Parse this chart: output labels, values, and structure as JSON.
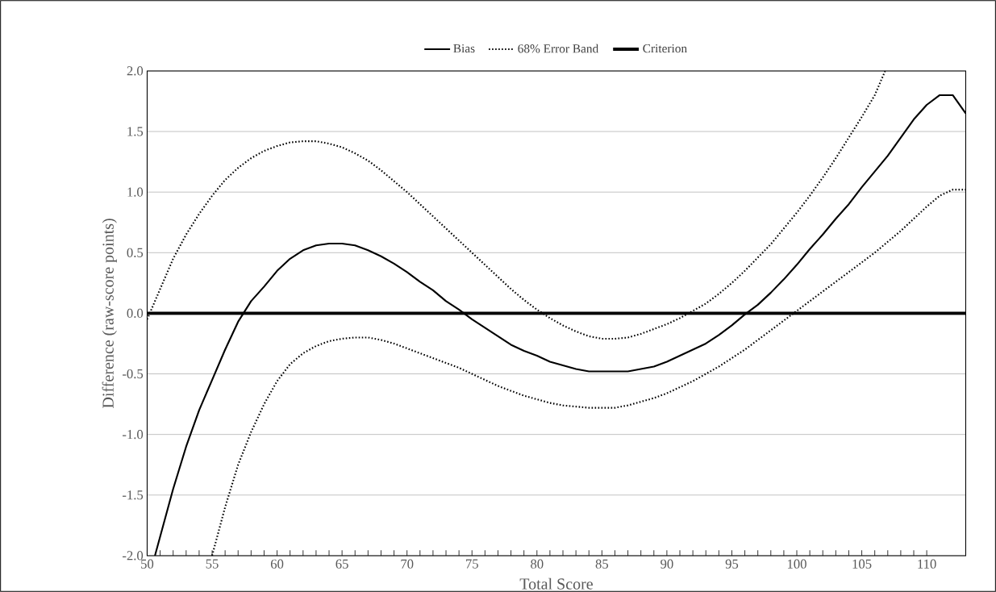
{
  "chart_data": {
    "type": "line",
    "xlabel": "Total Score",
    "ylabel": "Difference (raw-score points)",
    "xlim": [
      50,
      113
    ],
    "xticks": [
      50,
      55,
      60,
      65,
      70,
      75,
      80,
      85,
      90,
      95,
      100,
      105,
      110
    ],
    "ylim": [
      -2.0,
      2.0
    ],
    "yticks": [
      {
        "value": -2.0,
        "label": "-2.0"
      },
      {
        "value": -1.5,
        "label": "-1.5"
      },
      {
        "value": -1.0,
        "label": "-1.0"
      },
      {
        "value": -0.5,
        "label": "-0.5"
      },
      {
        "value": 0.0,
        "label": "0.0"
      },
      {
        "value": 0.5,
        "label": "0.5"
      },
      {
        "value": 1.0,
        "label": "1.0"
      },
      {
        "value": 1.5,
        "label": "1.5"
      },
      {
        "value": 2.0,
        "label": "2.0"
      }
    ],
    "grid": "y",
    "legend": "top",
    "marker": "none",
    "series": [
      {
        "name": "Bias",
        "color": "#000000",
        "line_style": "solid",
        "x": [
          50.6,
          52,
          53,
          54,
          55,
          56,
          57,
          58,
          59,
          60,
          61,
          62,
          63,
          64,
          65,
          66,
          67,
          68,
          69,
          70,
          71,
          72,
          73,
          74,
          75,
          76,
          77,
          78,
          79,
          80,
          81,
          82,
          83,
          84,
          85,
          86,
          87,
          88,
          89,
          90,
          91,
          92,
          93,
          94,
          95,
          96,
          97,
          98,
          99,
          100,
          101,
          102,
          103,
          104,
          105,
          106,
          107,
          108,
          109,
          110,
          111,
          112,
          113
        ],
        "values": [
          -2.0,
          -1.45,
          -1.1,
          -0.8,
          -0.55,
          -0.3,
          -0.07,
          0.1,
          0.22,
          0.35,
          0.45,
          0.52,
          0.56,
          0.575,
          0.575,
          0.56,
          0.52,
          0.47,
          0.41,
          0.34,
          0.26,
          0.19,
          0.1,
          0.03,
          -0.05,
          -0.12,
          -0.19,
          -0.26,
          -0.31,
          -0.35,
          -0.4,
          -0.43,
          -0.46,
          -0.48,
          -0.48,
          -0.48,
          -0.48,
          -0.46,
          -0.44,
          -0.4,
          -0.35,
          -0.3,
          -0.25,
          -0.18,
          -0.1,
          -0.01,
          0.07,
          0.17,
          0.28,
          0.4,
          0.53,
          0.65,
          0.78,
          0.9,
          1.04,
          1.17,
          1.3,
          1.45,
          1.6,
          1.72,
          1.8,
          1.8,
          1.65
        ]
      },
      {
        "name": "68% Error Band",
        "color": "#000000",
        "line_style": "dotted",
        "x": [
          50,
          51,
          52,
          53,
          54,
          55,
          56,
          57,
          58,
          59,
          60,
          61,
          62,
          63,
          64,
          65,
          66,
          67,
          68,
          69,
          70,
          71,
          72,
          73,
          74,
          75,
          76,
          77,
          78,
          79,
          80,
          81,
          82,
          83,
          84,
          85,
          86,
          87,
          88,
          89,
          90,
          91,
          92,
          93,
          94,
          95,
          96,
          97,
          98,
          99,
          100,
          101,
          102,
          103,
          104,
          105,
          106,
          106.8
        ],
        "values": [
          -0.05,
          0.2,
          0.45,
          0.65,
          0.82,
          0.97,
          1.1,
          1.2,
          1.28,
          1.34,
          1.38,
          1.41,
          1.42,
          1.42,
          1.4,
          1.37,
          1.32,
          1.26,
          1.18,
          1.09,
          1.0,
          0.9,
          0.8,
          0.7,
          0.6,
          0.5,
          0.4,
          0.3,
          0.2,
          0.11,
          0.03,
          -0.04,
          -0.1,
          -0.15,
          -0.19,
          -0.21,
          -0.21,
          -0.2,
          -0.17,
          -0.13,
          -0.09,
          -0.04,
          0.02,
          0.08,
          0.16,
          0.25,
          0.35,
          0.46,
          0.57,
          0.7,
          0.83,
          0.97,
          1.12,
          1.28,
          1.45,
          1.62,
          1.8,
          2.0
        ]
      },
      {
        "color": "#000000",
        "line_style": "dotted",
        "x": [
          55,
          56,
          57,
          58,
          59,
          60,
          61,
          62,
          63,
          64,
          65,
          66,
          67,
          68,
          69,
          70,
          71,
          72,
          73,
          74,
          75,
          76,
          77,
          78,
          79,
          80,
          81,
          82,
          83,
          84,
          85,
          86,
          87,
          88,
          89,
          90,
          91,
          92,
          93,
          94,
          95,
          96,
          97,
          98,
          99,
          100,
          101,
          102,
          103,
          104,
          105,
          106,
          107,
          108,
          109,
          110,
          111,
          112,
          113
        ],
        "values": [
          -2.0,
          -1.6,
          -1.25,
          -0.98,
          -0.75,
          -0.56,
          -0.42,
          -0.33,
          -0.27,
          -0.23,
          -0.21,
          -0.2,
          -0.2,
          -0.22,
          -0.25,
          -0.29,
          -0.33,
          -0.37,
          -0.41,
          -0.45,
          -0.5,
          -0.55,
          -0.6,
          -0.64,
          -0.68,
          -0.71,
          -0.74,
          -0.76,
          -0.77,
          -0.78,
          -0.78,
          -0.78,
          -0.76,
          -0.73,
          -0.7,
          -0.66,
          -0.61,
          -0.56,
          -0.5,
          -0.44,
          -0.37,
          -0.3,
          -0.22,
          -0.14,
          -0.06,
          0.02,
          0.1,
          0.18,
          0.26,
          0.34,
          0.42,
          0.5,
          0.59,
          0.68,
          0.78,
          0.88,
          0.97,
          1.02,
          1.02
        ]
      }
    ],
    "ref_lines": [
      {
        "axis": "y",
        "value": 0,
        "label": "Criterion",
        "color": "#000000",
        "line_style": "solid"
      }
    ]
  }
}
